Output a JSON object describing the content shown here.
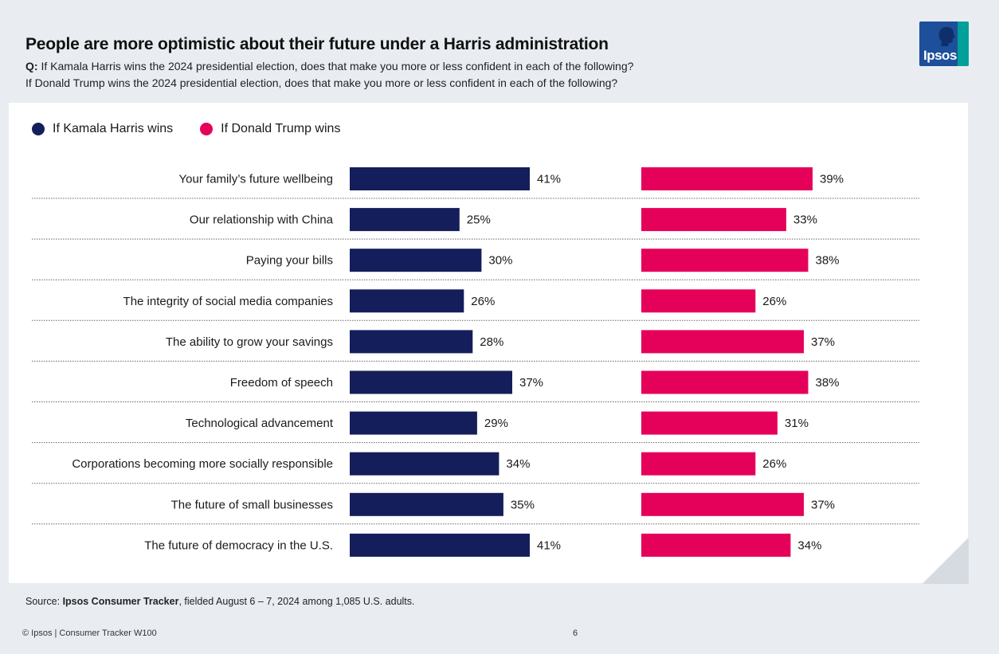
{
  "header": {
    "title": "People are more optimistic about their future under a Harris administration",
    "question_prefix": "Q:",
    "question_1": "If Kamala Harris wins the 2024 presidential election, does that make you more or less confident in each of the following?",
    "question_2": "If Donald Trump wins the 2024 presidential election, does that make you more or less confident in each of the following?"
  },
  "logo": {
    "text": "Ipsos"
  },
  "colors": {
    "harris": "#141e5a",
    "trump": "#e5005a",
    "logo_blue": "#1d4f9a",
    "logo_teal": "#00a09a"
  },
  "chart_data": {
    "type": "bar",
    "title": "People are more optimistic about their future under a Harris administration",
    "xlabel": "",
    "ylabel": "",
    "value_suffix": "%",
    "xlim": [
      0,
      50
    ],
    "legend_position": "top-left",
    "categories": [
      "Your family’s future wellbeing",
      "Our relationship with China",
      "Paying your bills",
      "The integrity of social media companies",
      "The ability to grow your savings",
      "Freedom of speech",
      "Technological advancement",
      "Corporations becoming more socially responsible",
      "The future of small businesses",
      "The future of democracy in the U.S."
    ],
    "series": [
      {
        "name": "If Kamala Harris wins",
        "color": "#141e5a",
        "values": [
          41,
          25,
          30,
          26,
          28,
          37,
          29,
          34,
          35,
          41
        ]
      },
      {
        "name": "If Donald Trump wins",
        "color": "#e5005a",
        "values": [
          39,
          33,
          38,
          26,
          37,
          38,
          31,
          26,
          37,
          34
        ]
      }
    ]
  },
  "source": {
    "prefix": "Source: ",
    "name": "Ipsos Consumer Tracker",
    "suffix": ", fielded August 6 – 7, 2024 among 1,085 U.S. adults."
  },
  "footer": {
    "left": "© Ipsos | Consumer Tracker W100",
    "page": "6"
  }
}
